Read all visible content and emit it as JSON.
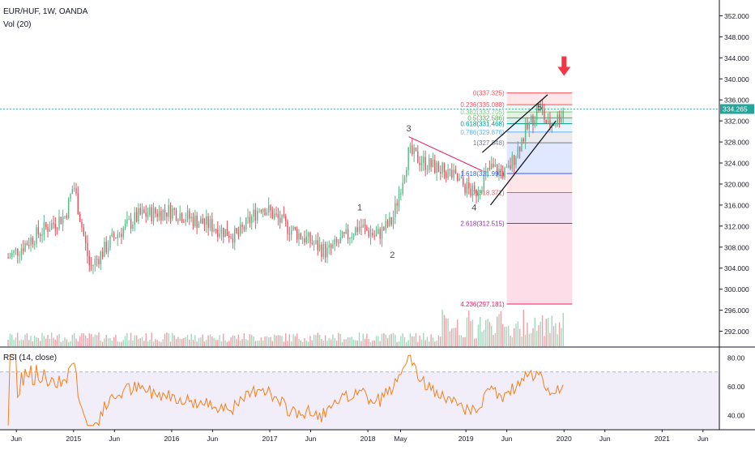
{
  "header": {
    "symbol_line": "EUR/HUF, 1W, OANDA",
    "volume_label": "Vol (20)"
  },
  "rsi_label": "RSI (14, close)",
  "colors": {
    "up": "#53b987",
    "down": "#eb4d5c",
    "rsi": "#f57f17",
    "rsi_band": "#7e57c2",
    "arrow": "#f23645",
    "price_line": "#26a69a"
  },
  "chart_data": {
    "type": "candlestick",
    "title": "EUR/HUF, 1W, OANDA",
    "x_ticks": [
      "Jun",
      "2015",
      "Jun",
      "2016",
      "Jun",
      "2017",
      "Jun",
      "2018",
      "May",
      "2019",
      "Jun",
      "2020",
      "Jun",
      "2021",
      "Jun"
    ],
    "y_ticks": [
      "352.000",
      "348.000",
      "344.000",
      "340.000",
      "336.000",
      "332.000",
      "328.000",
      "324.000",
      "320.000",
      "316.000",
      "312.000",
      "308.000",
      "304.000",
      "300.000",
      "296.000",
      "292.000"
    ],
    "rsi_ticks": [
      "80.00",
      "60.00",
      "40.00"
    ],
    "last_price": "334.265",
    "ylim": [
      289,
      355
    ],
    "rsi_ylim": [
      30,
      85
    ],
    "key_price_path": [
      {
        "date": "2014-05",
        "price": 306
      },
      {
        "date": "2014-09",
        "price": 311
      },
      {
        "date": "2014-12",
        "price": 314
      },
      {
        "date": "2015-01",
        "price": 320
      },
      {
        "date": "2015-03",
        "price": 304
      },
      {
        "date": "2015-06",
        "price": 310
      },
      {
        "date": "2015-09",
        "price": 314
      },
      {
        "date": "2016-01",
        "price": 315
      },
      {
        "date": "2016-04",
        "price": 313
      },
      {
        "date": "2016-06",
        "price": 312
      },
      {
        "date": "2016-09",
        "price": 310
      },
      {
        "date": "2016-12",
        "price": 316
      },
      {
        "date": "2017-03",
        "price": 312
      },
      {
        "date": "2017-06",
        "price": 309
      },
      {
        "date": "2017-08",
        "price": 307
      },
      {
        "date": "2017-12",
        "price": 312
      },
      {
        "date": "2018-02",
        "price": 310
      },
      {
        "date": "2018-04",
        "price": 313
      },
      {
        "date": "2018-06",
        "price": 326
      },
      {
        "date": "2018-08",
        "price": 324
      },
      {
        "date": "2018-11",
        "price": 322
      },
      {
        "date": "2019-02",
        "price": 318
      },
      {
        "date": "2019-04",
        "price": 323
      },
      {
        "date": "2019-06",
        "price": 322
      },
      {
        "date": "2019-08",
        "price": 329
      },
      {
        "date": "2019-10",
        "price": 335
      },
      {
        "date": "2019-11",
        "price": 331
      },
      {
        "date": "2019-12",
        "price": 332
      },
      {
        "date": "2020-01",
        "price": 334.3
      }
    ],
    "wave_labels": [
      {
        "text": "1",
        "price": 315
      },
      {
        "text": "2",
        "price": 306
      },
      {
        "text": "3",
        "price": 330
      },
      {
        "text": "4",
        "price": 315
      },
      {
        "text": "5",
        "price": 334
      }
    ],
    "fib_levels": [
      {
        "label": "0(337.325)",
        "ratio": 0,
        "price": 337.325,
        "color": "#f7525f"
      },
      {
        "label": "0.236(335.088)",
        "ratio": 0.236,
        "price": 335.088,
        "color": "#f7525f"
      },
      {
        "label": "0.382(333.705)",
        "ratio": 0.382,
        "price": 333.705,
        "color": "#81c784"
      },
      {
        "label": "0.5(332.586)",
        "ratio": 0.5,
        "price": 332.586,
        "color": "#4caf50"
      },
      {
        "label": "0.618(331.468)",
        "ratio": 0.618,
        "price": 331.468,
        "color": "#009688"
      },
      {
        "label": "0.786(329.876)",
        "ratio": 0.786,
        "price": 329.876,
        "color": "#64b5f6"
      },
      {
        "label": "1(327.848)",
        "ratio": 1,
        "price": 327.848,
        "color": "#787b86"
      },
      {
        "label": "1.618(321.991)",
        "ratio": 1.618,
        "price": 321.991,
        "color": "#2962ff"
      },
      {
        "label": "2(318.371)",
        "ratio": 2,
        "price": 318.371,
        "color": "#f7525f"
      },
      {
        "label": "2.618(312.515)",
        "ratio": 2.618,
        "price": 312.515,
        "color": "#9c27b0"
      },
      {
        "label": "4.236(297.181)",
        "ratio": 4.236,
        "price": 297.181,
        "color": "#e91e63"
      }
    ]
  }
}
